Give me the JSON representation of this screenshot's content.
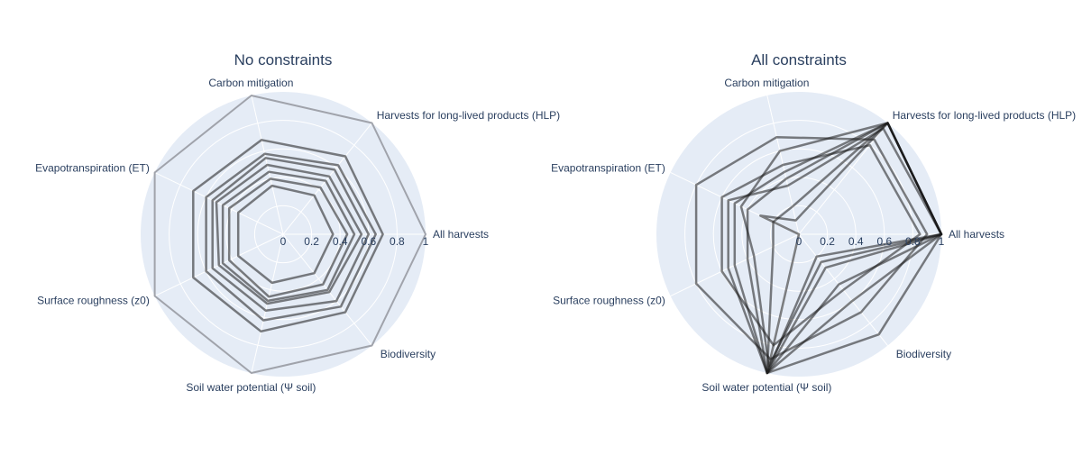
{
  "chart_data": [
    {
      "type": "radar",
      "title": "No constraints",
      "axes": [
        "All harvests",
        "Harvests for long-lived products (HLP)",
        "Carbon mitigation",
        "Evapotranspiration (ET)",
        "Surface roughness (z0)",
        "Soil water potential (Ψ soil)",
        "Biodiversity"
      ],
      "radial_ticks": [
        "0",
        "0.2",
        "0.4",
        "0.6",
        "0.8",
        "1"
      ],
      "radial_range": [
        0,
        1
      ],
      "grid": true,
      "series": [
        {
          "values": [
            1.0,
            1.0,
            1.0,
            1.0,
            1.0,
            1.0,
            1.0
          ]
        },
        {
          "values": [
            0.35,
            0.35,
            0.35,
            0.35,
            0.35,
            0.35,
            0.35
          ]
        },
        {
          "values": [
            0.55,
            0.52,
            0.5,
            0.52,
            0.5,
            0.5,
            0.52
          ]
        },
        {
          "values": [
            0.6,
            0.58,
            0.55,
            0.55,
            0.55,
            0.55,
            0.6
          ]
        },
        {
          "values": [
            0.5,
            0.48,
            0.45,
            0.47,
            0.47,
            0.48,
            0.5
          ]
        },
        {
          "values": [
            0.65,
            0.62,
            0.58,
            0.6,
            0.6,
            0.62,
            0.65
          ]
        },
        {
          "values": [
            0.7,
            0.7,
            0.68,
            0.7,
            0.7,
            0.7,
            0.7
          ]
        },
        {
          "values": [
            0.45,
            0.42,
            0.4,
            0.42,
            0.42,
            0.45,
            0.45
          ]
        }
      ]
    },
    {
      "type": "radar",
      "title": "All constraints",
      "axes": [
        "All harvests",
        "Harvests for long-lived products (HLP)",
        "Carbon mitigation",
        "Evapotranspiration (ET)",
        "Surface roughness (z0)",
        "Soil water potential (Ψ soil)",
        "Biodiversity"
      ],
      "radial_ticks": [
        "0",
        "0.2",
        "0.4",
        "0.6",
        "0.8",
        "1"
      ],
      "radial_range": [
        0,
        1
      ],
      "grid": true,
      "series": [
        {
          "values": [
            1.0,
            1.0,
            0.4,
            0.4,
            0.4,
            1.0,
            0.2
          ]
        },
        {
          "values": [
            1.0,
            1.0,
            0.1,
            0.3,
            0.0,
            1.0,
            0.9
          ]
        },
        {
          "values": [
            1.0,
            0.95,
            0.35,
            0.55,
            0.55,
            1.0,
            0.3
          ]
        },
        {
          "values": [
            1.0,
            1.0,
            0.6,
            0.45,
            0.35,
            0.95,
            0.25
          ]
        },
        {
          "values": [
            0.85,
            0.8,
            0.5,
            0.6,
            0.6,
            0.8,
            0.5
          ]
        },
        {
          "values": [
            1.0,
            1.0,
            0.2,
            0.2,
            0.2,
            1.0,
            0.6
          ]
        },
        {
          "values": [
            0.9,
            0.85,
            0.7,
            0.8,
            0.8,
            0.9,
            0.7
          ]
        },
        {
          "values": [
            1.0,
            1.0,
            0.45,
            0.5,
            0.5,
            1.0,
            0.45
          ]
        }
      ]
    }
  ],
  "colors": {
    "polar_bg": "#e5ecf6",
    "grid": "#ffffff",
    "line": "#1a1a1a",
    "text": "#2a3f5f",
    "outline": "#a0a3ab"
  }
}
